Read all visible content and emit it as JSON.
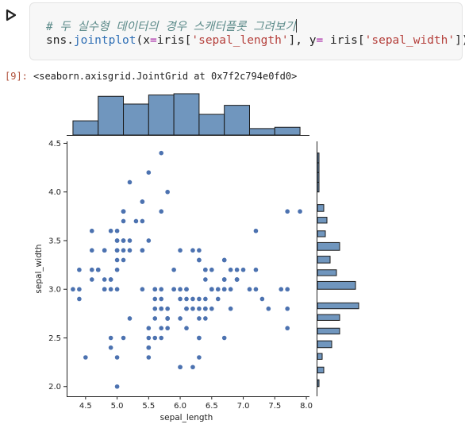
{
  "cell": {
    "comment": "# 두 실수형 데이터의 경우 스캐터플롯 그려보기",
    "code_tokens": [
      {
        "t": "sns.",
        "c": "default"
      },
      {
        "t": "jointplot",
        "c": "func"
      },
      {
        "t": "(x",
        "c": "default"
      },
      {
        "t": "=",
        "c": "op"
      },
      {
        "t": "iris[",
        "c": "default"
      },
      {
        "t": "'sepal_length'",
        "c": "str"
      },
      {
        "t": "], y",
        "c": "default"
      },
      {
        "t": "=",
        "c": "op"
      },
      {
        "t": " iris[",
        "c": "default"
      },
      {
        "t": "'sepal_width'",
        "c": "str"
      },
      {
        "t": "])",
        "c": "default"
      }
    ]
  },
  "output": {
    "exec_count": "[9]:",
    "repr": "<seaborn.axisgrid.JointGrid at 0x7f2c794e0fd0>"
  },
  "chart_data": {
    "type": "scatter",
    "xlabel": "sepal_length",
    "ylabel": "sepal_width",
    "xlim": [
      4.2,
      8.05
    ],
    "ylim": [
      1.9,
      4.52
    ],
    "xticks": [
      "4.5",
      "5.0",
      "5.5",
      "6.0",
      "6.5",
      "7.0",
      "7.5",
      "8.0"
    ],
    "yticks": [
      "2.0",
      "2.5",
      "3.0",
      "3.5",
      "4.0",
      "4.5"
    ],
    "point_color": "#4c72b0",
    "bar_color": "#7096be",
    "points": [
      [
        5.1,
        3.5
      ],
      [
        4.9,
        3.0
      ],
      [
        4.7,
        3.2
      ],
      [
        4.6,
        3.1
      ],
      [
        5.0,
        3.6
      ],
      [
        5.4,
        3.9
      ],
      [
        4.6,
        3.4
      ],
      [
        5.0,
        3.4
      ],
      [
        4.4,
        2.9
      ],
      [
        4.9,
        3.1
      ],
      [
        5.4,
        3.7
      ],
      [
        4.8,
        3.4
      ],
      [
        4.8,
        3.0
      ],
      [
        4.3,
        3.0
      ],
      [
        5.8,
        4.0
      ],
      [
        5.7,
        4.4
      ],
      [
        5.4,
        3.9
      ],
      [
        5.1,
        3.5
      ],
      [
        5.7,
        3.8
      ],
      [
        5.1,
        3.8
      ],
      [
        5.4,
        3.4
      ],
      [
        5.1,
        3.7
      ],
      [
        4.6,
        3.6
      ],
      [
        5.1,
        3.3
      ],
      [
        4.8,
        3.4
      ],
      [
        5.0,
        3.0
      ],
      [
        5.0,
        3.4
      ],
      [
        5.2,
        3.5
      ],
      [
        5.2,
        3.4
      ],
      [
        4.7,
        3.2
      ],
      [
        4.8,
        3.1
      ],
      [
        5.4,
        3.4
      ],
      [
        5.2,
        4.1
      ],
      [
        5.5,
        4.2
      ],
      [
        4.9,
        3.1
      ],
      [
        5.0,
        3.2
      ],
      [
        5.5,
        3.5
      ],
      [
        4.9,
        3.6
      ],
      [
        4.4,
        3.0
      ],
      [
        5.1,
        3.4
      ],
      [
        5.0,
        3.5
      ],
      [
        4.5,
        2.3
      ],
      [
        4.4,
        3.2
      ],
      [
        5.0,
        3.5
      ],
      [
        5.1,
        3.8
      ],
      [
        4.8,
        3.0
      ],
      [
        5.1,
        3.8
      ],
      [
        4.6,
        3.2
      ],
      [
        5.3,
        3.7
      ],
      [
        5.0,
        3.3
      ],
      [
        7.0,
        3.2
      ],
      [
        6.4,
        3.2
      ],
      [
        6.9,
        3.1
      ],
      [
        5.5,
        2.3
      ],
      [
        6.5,
        2.8
      ],
      [
        5.7,
        2.8
      ],
      [
        6.3,
        3.3
      ],
      [
        4.9,
        2.4
      ],
      [
        6.6,
        2.9
      ],
      [
        5.2,
        2.7
      ],
      [
        5.0,
        2.0
      ],
      [
        5.9,
        3.0
      ],
      [
        6.0,
        2.2
      ],
      [
        6.1,
        2.9
      ],
      [
        5.6,
        2.9
      ],
      [
        6.7,
        3.1
      ],
      [
        5.6,
        3.0
      ],
      [
        5.8,
        2.7
      ],
      [
        6.2,
        2.2
      ],
      [
        5.6,
        2.5
      ],
      [
        5.9,
        3.2
      ],
      [
        6.1,
        2.8
      ],
      [
        6.3,
        2.5
      ],
      [
        6.1,
        2.8
      ],
      [
        6.4,
        2.9
      ],
      [
        6.6,
        3.0
      ],
      [
        6.8,
        2.8
      ],
      [
        6.7,
        3.0
      ],
      [
        6.0,
        2.9
      ],
      [
        5.7,
        2.6
      ],
      [
        5.5,
        2.4
      ],
      [
        5.5,
        2.4
      ],
      [
        5.8,
        2.7
      ],
      [
        6.0,
        2.7
      ],
      [
        5.4,
        3.0
      ],
      [
        6.0,
        3.4
      ],
      [
        6.7,
        3.1
      ],
      [
        6.3,
        2.3
      ],
      [
        5.6,
        3.0
      ],
      [
        5.5,
        2.5
      ],
      [
        5.5,
        2.6
      ],
      [
        6.1,
        3.0
      ],
      [
        5.8,
        2.6
      ],
      [
        5.0,
        2.3
      ],
      [
        5.6,
        2.7
      ],
      [
        5.7,
        3.0
      ],
      [
        5.7,
        2.9
      ],
      [
        6.2,
        2.9
      ],
      [
        5.1,
        2.5
      ],
      [
        5.7,
        2.8
      ],
      [
        6.3,
        3.3
      ],
      [
        5.8,
        2.7
      ],
      [
        7.1,
        3.0
      ],
      [
        6.3,
        2.9
      ],
      [
        6.5,
        3.0
      ],
      [
        7.6,
        3.0
      ],
      [
        4.9,
        2.5
      ],
      [
        7.3,
        2.9
      ],
      [
        6.7,
        2.5
      ],
      [
        7.2,
        3.6
      ],
      [
        6.5,
        3.2
      ],
      [
        6.4,
        2.7
      ],
      [
        6.8,
        3.0
      ],
      [
        5.7,
        2.5
      ],
      [
        5.8,
        2.8
      ],
      [
        6.4,
        3.2
      ],
      [
        6.5,
        3.0
      ],
      [
        7.7,
        3.8
      ],
      [
        7.7,
        2.6
      ],
      [
        6.0,
        2.2
      ],
      [
        6.9,
        3.2
      ],
      [
        5.6,
        2.8
      ],
      [
        7.7,
        2.8
      ],
      [
        6.3,
        2.7
      ],
      [
        6.7,
        3.3
      ],
      [
        7.2,
        3.2
      ],
      [
        6.2,
        2.8
      ],
      [
        6.1,
        3.0
      ],
      [
        6.4,
        2.8
      ],
      [
        7.2,
        3.0
      ],
      [
        7.4,
        2.8
      ],
      [
        7.9,
        3.8
      ],
      [
        6.4,
        2.8
      ],
      [
        6.3,
        2.8
      ],
      [
        6.1,
        2.6
      ],
      [
        7.7,
        3.0
      ],
      [
        6.3,
        3.4
      ],
      [
        6.4,
        3.1
      ],
      [
        6.0,
        3.0
      ],
      [
        6.9,
        3.1
      ],
      [
        6.7,
        3.1
      ],
      [
        6.9,
        3.1
      ],
      [
        5.8,
        2.7
      ],
      [
        6.8,
        3.2
      ],
      [
        6.7,
        3.3
      ],
      [
        6.7,
        3.0
      ],
      [
        6.3,
        2.5
      ],
      [
        6.5,
        3.0
      ],
      [
        6.2,
        3.4
      ],
      [
        5.9,
        3.0
      ]
    ],
    "x_hist": {
      "edges": [
        4.3,
        4.7,
        5.1,
        5.5,
        5.9,
        6.3,
        6.7,
        7.1,
        7.5,
        7.9
      ],
      "counts": [
        11,
        30,
        24,
        31,
        32,
        16,
        23,
        5,
        6
      ]
    },
    "y_hist": {
      "edges": [
        2.0,
        2.07,
        2.14,
        2.2,
        2.28,
        2.34,
        2.4,
        2.47,
        2.54,
        2.6,
        2.68,
        2.74,
        2.8,
        2.86,
        2.94,
        3.0,
        3.08,
        3.14,
        3.2,
        3.27,
        3.34,
        3.4,
        3.48,
        3.54,
        3.6,
        3.68,
        3.74,
        3.8,
        3.87,
        3.94,
        4.0,
        4.1,
        4.2,
        4.3,
        4.4
      ],
      "counts": [
        1,
        0,
        4,
        0,
        3,
        0,
        9,
        0,
        14,
        0,
        14,
        0,
        26,
        0,
        0,
        24,
        0,
        12,
        0,
        8,
        0,
        14,
        0,
        5,
        0,
        6,
        0,
        4,
        0,
        0,
        1,
        1,
        1,
        1
      ]
    }
  }
}
